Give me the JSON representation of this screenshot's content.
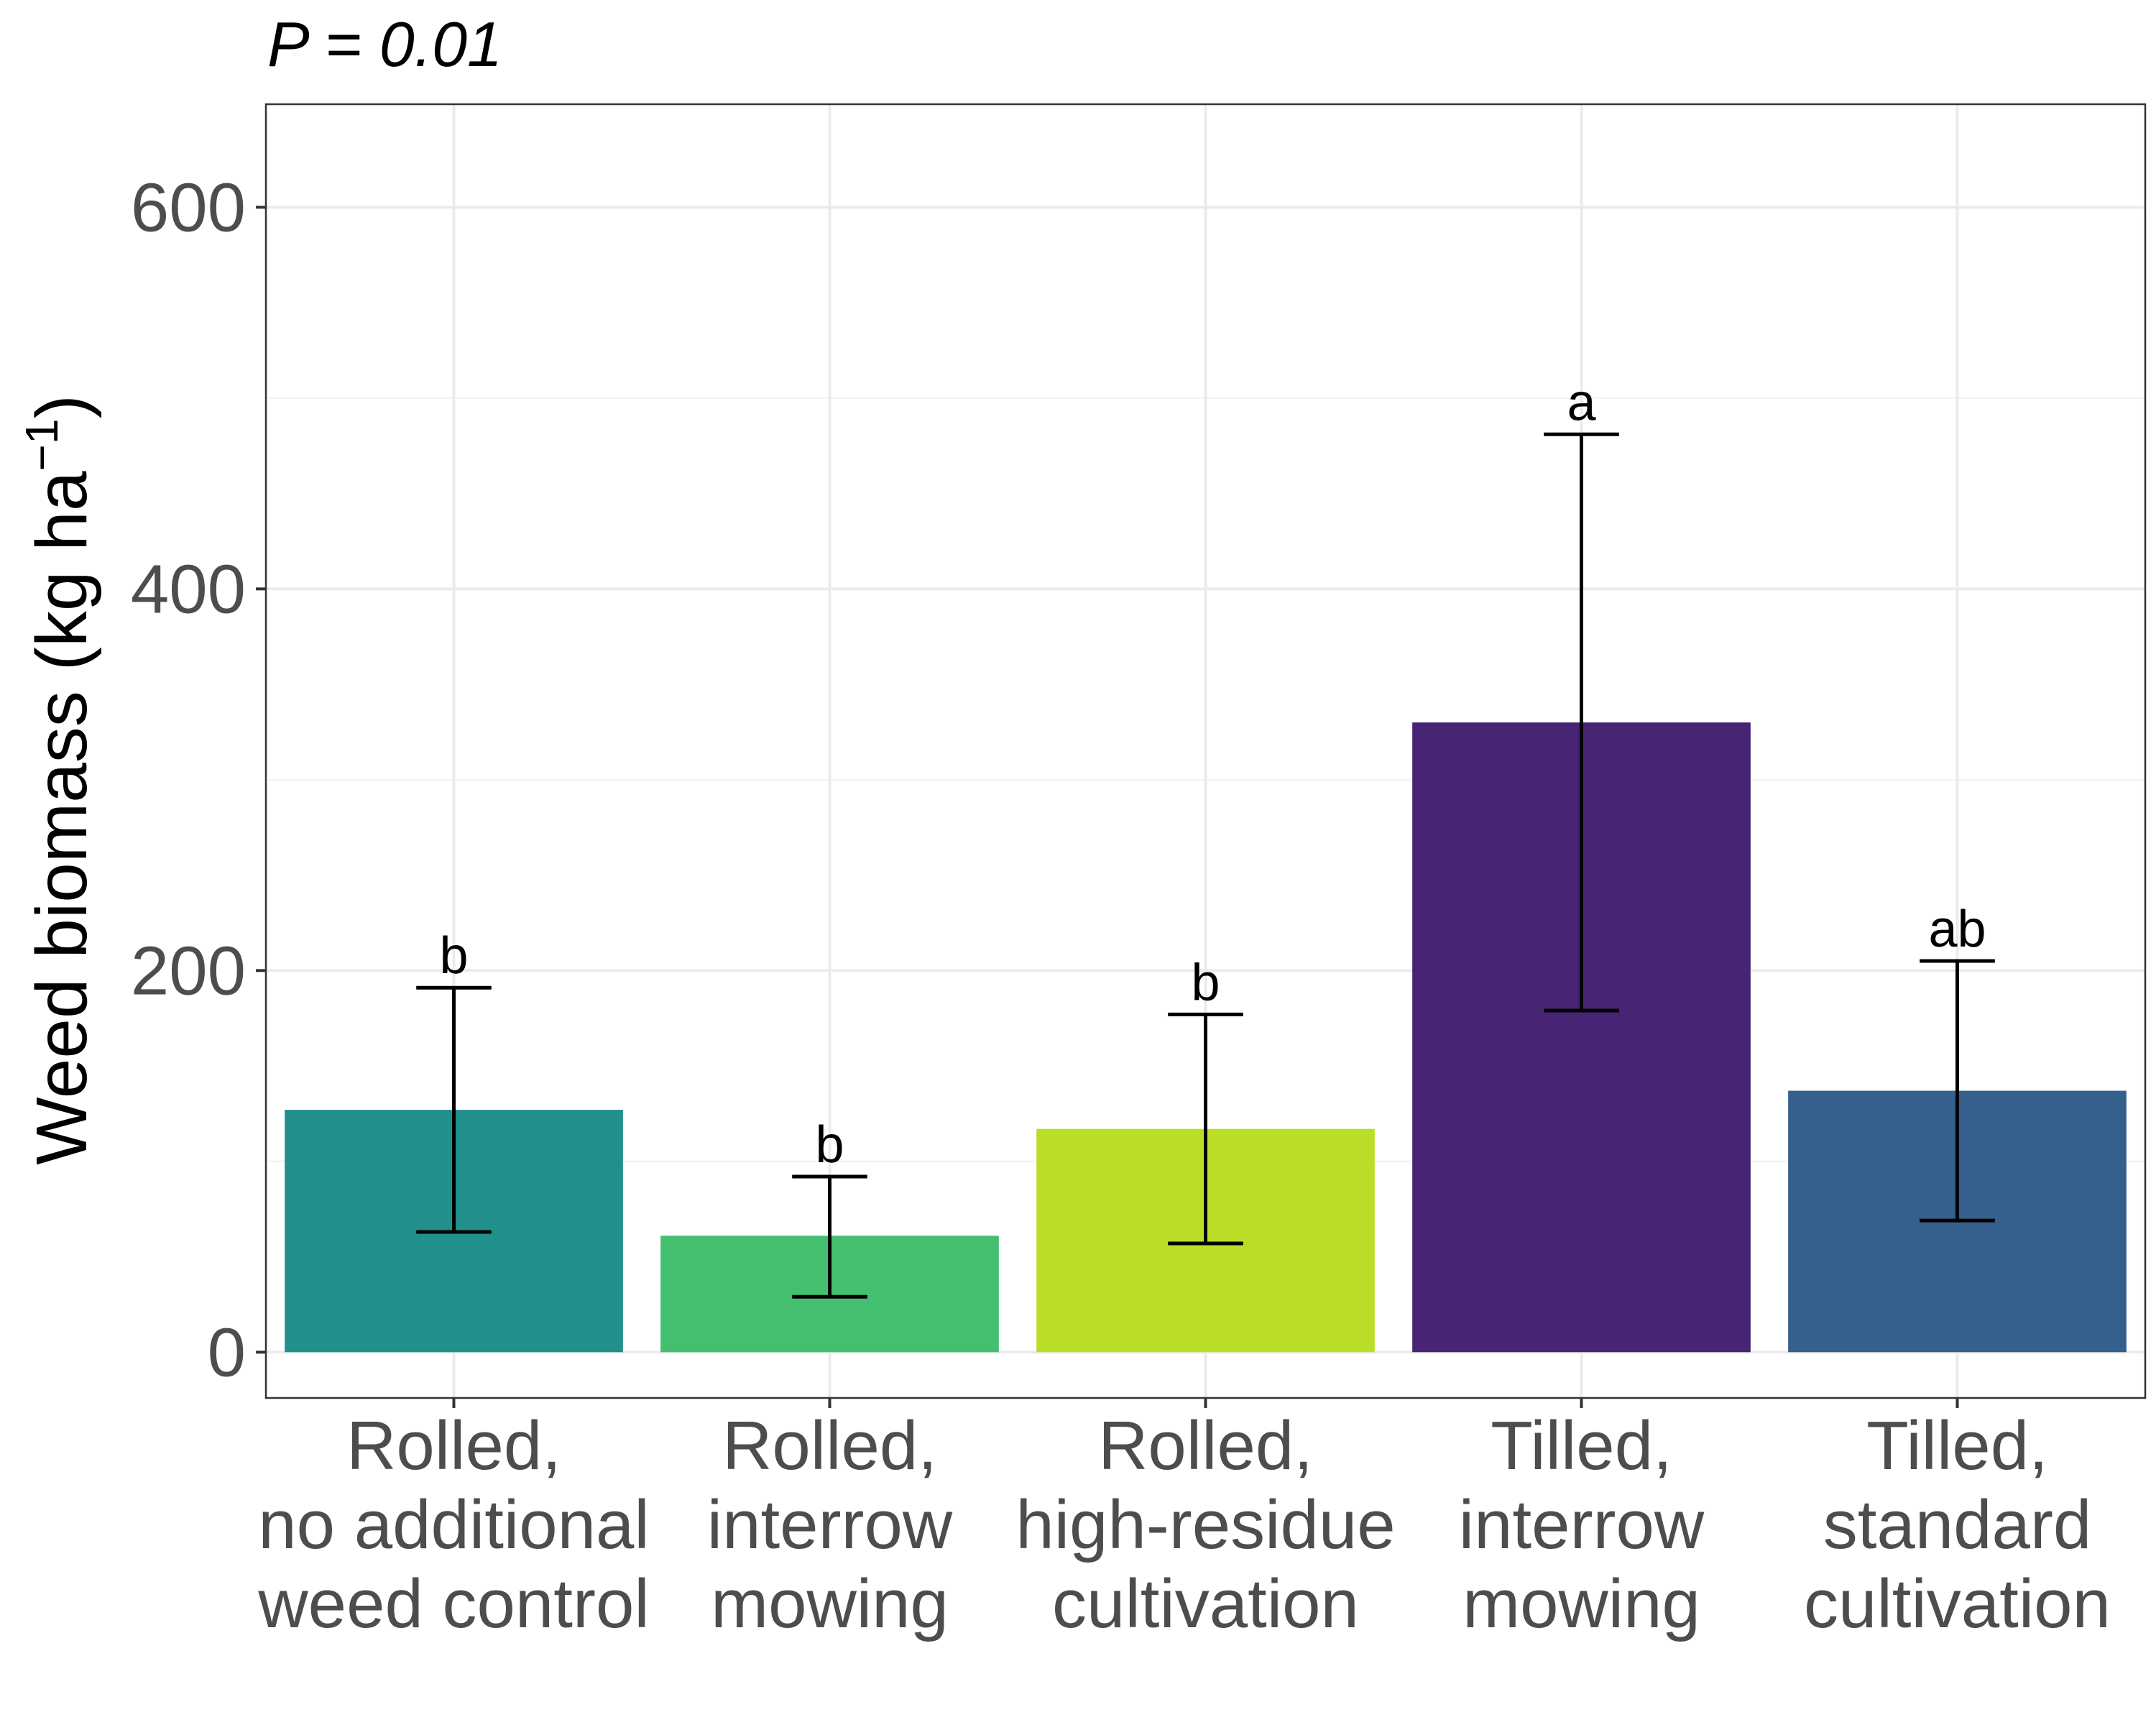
{
  "chart_data": {
    "type": "bar",
    "title": "P = 0.01",
    "xlabel": "",
    "ylabel": "Weed biomass (kg ha",
    "ylabel_superscript": "−1",
    "ylabel_close": ")",
    "ylim": [
      -24,
      654
    ],
    "yticks": [
      0,
      200,
      400,
      600
    ],
    "ytick_labels": [
      "0",
      "200",
      "400",
      "600"
    ],
    "grid": true,
    "legend": "none",
    "categories": [
      [
        "Rolled,",
        "no additional",
        "weed control"
      ],
      [
        "Rolled,",
        "interrow",
        "mowing"
      ],
      [
        "Rolled,",
        "high-residue",
        "cultivation"
      ],
      [
        "Tilled,",
        "interrow",
        "mowing"
      ],
      [
        "Tilled,",
        "standard",
        "cultivation"
      ]
    ],
    "values": [
      127,
      61,
      117,
      330,
      137
    ],
    "error_low": [
      63,
      29,
      57,
      179,
      69
    ],
    "error_high": [
      191,
      92,
      177,
      481,
      205
    ],
    "significance": [
      "b",
      "b",
      "b",
      "a",
      "ab"
    ],
    "colors": [
      "#21908C",
      "#44BF70",
      "#BADE28",
      "#482475",
      "#355F8D"
    ]
  }
}
